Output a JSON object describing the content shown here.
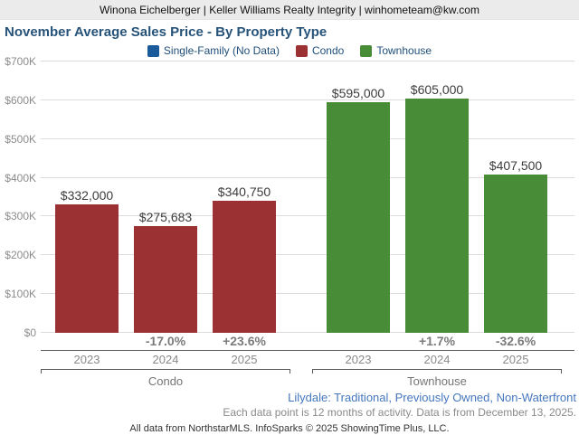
{
  "header": {
    "agent_line": "Winona Eichelberger | Keller Williams Realty Integrity | winhometeam@kw.com"
  },
  "footer": {
    "filters": "Lilydale: Traditional, Previously Owned, Non-Waterfront",
    "note": "Each data point is 12 months of activity. Data is from December 13, 2025.",
    "attribution": "All data from NorthstarMLS. InfoSparks © 2025 ShowingTime Plus, LLC."
  },
  "chart_data": {
    "type": "bar",
    "title": "November Average Sales Price - By Property Type",
    "xlabel": "",
    "ylabel": "",
    "ylim": [
      0,
      700000
    ],
    "y_ticks": [
      "$0",
      "$100K",
      "$200K",
      "$300K",
      "$400K",
      "$500K",
      "$600K",
      "$700K"
    ],
    "grid": "horizontal",
    "legend_position": "top",
    "legend": [
      {
        "label": "Single-Family (No Data)",
        "color": "#1b5a9b"
      },
      {
        "label": "Condo",
        "color": "#9b3132"
      },
      {
        "label": "Townhouse",
        "color": "#488c38"
      }
    ],
    "categories": [
      "2023",
      "2024",
      "2025"
    ],
    "series": [
      {
        "name": "Condo",
        "color": "#9b3132",
        "values": [
          332000,
          275683,
          340750
        ],
        "value_labels": [
          "$332,000",
          "$275,683",
          "$340,750"
        ],
        "pct_change": [
          "",
          "-17.0%",
          "+23.6%"
        ]
      },
      {
        "name": "Townhouse",
        "color": "#488c38",
        "values": [
          595000,
          605000,
          407500
        ],
        "value_labels": [
          "$595,000",
          "$605,000",
          "$407,500"
        ],
        "pct_change": [
          "",
          "+1.7%",
          "-32.6%"
        ]
      }
    ]
  }
}
